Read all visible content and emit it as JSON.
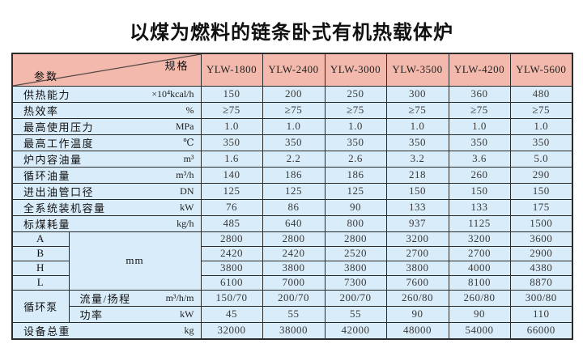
{
  "title": "以煤为燃料的链条卧式有机热载体炉",
  "colors": {
    "header_bg": "#f2b9ac",
    "cell_bg": "#d9ecf9",
    "border": "#2b2b2b"
  },
  "table": {
    "corner": {
      "top_right": "规格",
      "bottom_left": "参数"
    },
    "models": [
      "YLW-1800",
      "YLW-2400",
      "YLW-3000",
      "YLW-3500",
      "YLW-4200",
      "YLW-5600"
    ],
    "rows": [
      {
        "label": "供热能力",
        "unit": "×10⁴kcal/h",
        "values": [
          "150",
          "200",
          "250",
          "300",
          "360",
          "480"
        ]
      },
      {
        "label": "热效率",
        "unit": "%",
        "values": [
          "≥75",
          "≥75",
          "≥75",
          "≥75",
          "≥75",
          "≥75"
        ]
      },
      {
        "label": "最高使用压力",
        "unit": "MPa",
        "values": [
          "1.0",
          "1.0",
          "1.0",
          "1.0",
          "1.0",
          "1.0"
        ]
      },
      {
        "label": "最高工作温度",
        "unit": "℃",
        "values": [
          "350",
          "350",
          "350",
          "350",
          "350",
          "350"
        ]
      },
      {
        "label": "炉内容油量",
        "unit": "m³",
        "values": [
          "1.6",
          "2.2",
          "2.6",
          "3.2",
          "3.6",
          "5.0"
        ]
      },
      {
        "label": "循环油量",
        "unit": "m³/h",
        "values": [
          "140",
          "186",
          "186",
          "218",
          "260",
          "290"
        ]
      },
      {
        "label": "进出油管口径",
        "unit": "DN",
        "values": [
          "125",
          "125",
          "125",
          "150",
          "150",
          "150"
        ]
      },
      {
        "label": "全系统装机容量",
        "unit": "kW",
        "values": [
          "76",
          "86",
          "90",
          "133",
          "133",
          "175"
        ]
      },
      {
        "label": "标煤耗量",
        "unit": "kg/h",
        "values": [
          "485",
          "640",
          "800",
          "937",
          "1125",
          "1500"
        ]
      }
    ],
    "dimensions": {
      "unit": "mm",
      "rows": [
        {
          "label": "A",
          "values": [
            "2800",
            "2800",
            "2800",
            "3200",
            "3200",
            "3600"
          ]
        },
        {
          "label": "B",
          "values": [
            "2420",
            "2420",
            "2520",
            "2700",
            "2700",
            "2900"
          ]
        },
        {
          "label": "H",
          "values": [
            "3800",
            "3800",
            "3800",
            "3800",
            "4000",
            "4380"
          ]
        },
        {
          "label": "L",
          "values": [
            "6100",
            "7000",
            "7300",
            "7600",
            "8100",
            "8870"
          ]
        }
      ]
    },
    "pump": {
      "label": "循环泵",
      "rows": [
        {
          "label": "流量/扬程",
          "unit": "m³/h/m",
          "values": [
            "150/70",
            "200/70",
            "200/70",
            "260/80",
            "260/80",
            "300/80"
          ]
        },
        {
          "label": "功率",
          "unit": "kW",
          "values": [
            "45",
            "55",
            "55",
            "90",
            "90",
            "110"
          ]
        }
      ]
    },
    "total_weight": {
      "label": "设备总重",
      "unit": "kg",
      "values": [
        "32000",
        "38000",
        "42000",
        "48000",
        "54000",
        "66000"
      ]
    }
  }
}
